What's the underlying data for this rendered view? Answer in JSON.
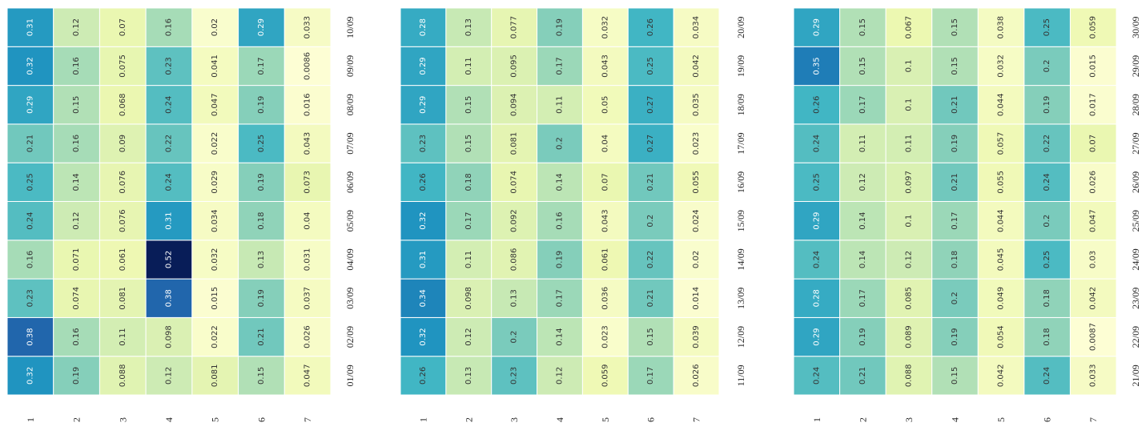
{
  "colors": {
    "scale": [
      "#ffffd9",
      "#edf8b1",
      "#c7e9b4",
      "#7fcdbb",
      "#41b6c4",
      "#1d91c0",
      "#225ea8",
      "#253494",
      "#081d58"
    ],
    "vmin": 0.0,
    "vmax": 0.52
  },
  "chart_data": [
    {
      "type": "heatmap",
      "title": "",
      "xlabel": "",
      "ylabel": "",
      "columns": [
        "1",
        "2",
        "3",
        "4",
        "5",
        "6",
        "7"
      ],
      "rows": [
        "01/09",
        "02/09",
        "03/09",
        "04/09",
        "05/09",
        "06/09",
        "07/09",
        "08/09",
        "09/09",
        "10/09"
      ],
      "values": [
        [
          "0.32",
          "0.19",
          "0.088",
          "0.12",
          "0.081",
          "0.15",
          "0.047"
        ],
        [
          "0.38",
          "0.16",
          "0.11",
          "0.098",
          "0.022",
          "0.21",
          "0.026"
        ],
        [
          "0.23",
          "0.074",
          "0.081",
          "0.38",
          "0.015",
          "0.19",
          "0.037"
        ],
        [
          "0.16",
          "0.071",
          "0.061",
          "0.52",
          "0.032",
          "0.13",
          "0.031"
        ],
        [
          "0.24",
          "0.12",
          "0.076",
          "0.31",
          "0.034",
          "0.18",
          "0.04"
        ],
        [
          "0.25",
          "0.14",
          "0.076",
          "0.24",
          "0.029",
          "0.19",
          "0.073"
        ],
        [
          "0.21",
          "0.16",
          "0.09",
          "0.22",
          "0.022",
          "0.25",
          "0.043"
        ],
        [
          "0.29",
          "0.15",
          "0.068",
          "0.24",
          "0.047",
          "0.19",
          "0.016"
        ],
        [
          "0.32",
          "0.16",
          "0.075",
          "0.23",
          "0.041",
          "0.17",
          "0.0086"
        ],
        [
          "0.31",
          "0.12",
          "0.07",
          "0.16",
          "0.02",
          "0.29",
          "0.033"
        ]
      ]
    },
    {
      "type": "heatmap",
      "title": "",
      "xlabel": "",
      "ylabel": "",
      "columns": [
        "1",
        "2",
        "3",
        "4",
        "5",
        "6",
        "7"
      ],
      "rows": [
        "11/09",
        "12/09",
        "13/09",
        "14/09",
        "15/09",
        "16/09",
        "17/09",
        "18/09",
        "19/09",
        "20/09"
      ],
      "values": [
        [
          "0.26",
          "0.13",
          "0.23",
          "0.12",
          "0.059",
          "0.17",
          "0.026"
        ],
        [
          "0.32",
          "0.12",
          "0.2",
          "0.14",
          "0.023",
          "0.15",
          "0.039"
        ],
        [
          "0.34",
          "0.098",
          "0.13",
          "0.17",
          "0.036",
          "0.21",
          "0.014"
        ],
        [
          "0.31",
          "0.11",
          "0.086",
          "0.19",
          "0.061",
          "0.22",
          "0.02"
        ],
        [
          "0.32",
          "0.17",
          "0.092",
          "0.16",
          "0.043",
          "0.2",
          "0.024"
        ],
        [
          "0.26",
          "0.18",
          "0.074",
          "0.14",
          "0.07",
          "0.21",
          "0.055"
        ],
        [
          "0.23",
          "0.15",
          "0.081",
          "0.2",
          "0.04",
          "0.27",
          "0.023"
        ],
        [
          "0.29",
          "0.15",
          "0.094",
          "0.11",
          "0.05",
          "0.27",
          "0.035"
        ],
        [
          "0.29",
          "0.11",
          "0.095",
          "0.17",
          "0.043",
          "0.25",
          "0.042"
        ],
        [
          "0.28",
          "0.13",
          "0.077",
          "0.19",
          "0.032",
          "0.26",
          "0.034"
        ]
      ]
    },
    {
      "type": "heatmap",
      "title": "",
      "xlabel": "",
      "ylabel": "",
      "columns": [
        "1",
        "2",
        "3",
        "4",
        "5",
        "6",
        "7"
      ],
      "rows": [
        "21/09",
        "22/09",
        "23/09",
        "24/09",
        "25/09",
        "26/09",
        "27/09",
        "28/09",
        "29/09",
        "30/09"
      ],
      "values": [
        [
          "0.24",
          "0.21",
          "0.088",
          "0.15",
          "0.042",
          "0.24",
          "0.033"
        ],
        [
          "0.29",
          "0.19",
          "0.089",
          "0.19",
          "0.054",
          "0.18",
          "0.0087"
        ],
        [
          "0.28",
          "0.17",
          "0.085",
          "0.2",
          "0.049",
          "0.18",
          "0.042"
        ],
        [
          "0.24",
          "0.14",
          "0.12",
          "0.18",
          "0.045",
          "0.25",
          "0.03"
        ],
        [
          "0.29",
          "0.14",
          "0.1",
          "0.17",
          "0.044",
          "0.2",
          "0.047"
        ],
        [
          "0.25",
          "0.12",
          "0.097",
          "0.21",
          "0.055",
          "0.24",
          "0.026"
        ],
        [
          "0.24",
          "0.11",
          "0.11",
          "0.19",
          "0.057",
          "0.22",
          "0.07"
        ],
        [
          "0.26",
          "0.17",
          "0.1",
          "0.21",
          "0.044",
          "0.19",
          "0.017"
        ],
        [
          "0.35",
          "0.15",
          "0.1",
          "0.15",
          "0.032",
          "0.2",
          "0.015"
        ],
        [
          "0.29",
          "0.15",
          "0.067",
          "0.15",
          "0.038",
          "0.25",
          "0.059"
        ]
      ]
    }
  ]
}
